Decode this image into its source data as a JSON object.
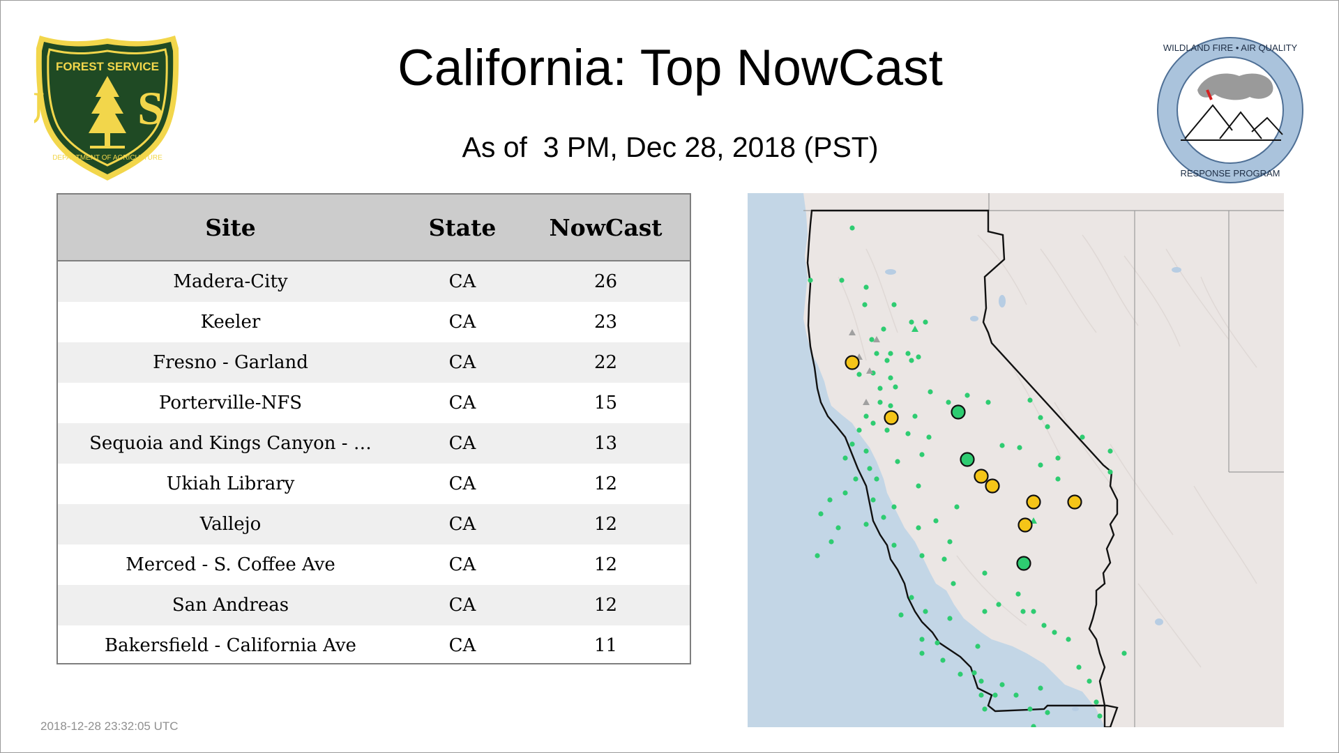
{
  "header": {
    "title": "California: Top NowCast",
    "subtitle": "As of  3 PM, Dec 28, 2018 (PST)"
  },
  "logos": {
    "usfs": {
      "top_text": "FOREST SERVICE",
      "letters": "U S",
      "bottom_text": "DEPARTMENT OF AGRICULTURE"
    },
    "wfaq": {
      "top_text": "WILDLAND FIRE • AIR QUALITY",
      "bottom_text": "RESPONSE PROGRAM"
    }
  },
  "table": {
    "headers": [
      "Site",
      "State",
      "NowCast"
    ],
    "rows": [
      {
        "site": "Madera-City",
        "state": "CA",
        "nowcast": "26"
      },
      {
        "site": "Keeler",
        "state": "CA",
        "nowcast": "23"
      },
      {
        "site": "Fresno - Garland",
        "state": "CA",
        "nowcast": "22"
      },
      {
        "site": "Porterville-NFS",
        "state": "CA",
        "nowcast": "15"
      },
      {
        "site": "Sequoia and Kings Canyon - …",
        "state": "CA",
        "nowcast": "13"
      },
      {
        "site": "Ukiah Library",
        "state": "CA",
        "nowcast": "12"
      },
      {
        "site": "Vallejo",
        "state": "CA",
        "nowcast": "12"
      },
      {
        "site": "Merced - S. Coffee Ave",
        "state": "CA",
        "nowcast": "12"
      },
      {
        "site": "San Andreas",
        "state": "CA",
        "nowcast": "12"
      },
      {
        "site": "Bakersfield - California Ave",
        "state": "CA",
        "nowcast": "11"
      }
    ]
  },
  "map": {
    "colors": {
      "ocean": "#c3d6e6",
      "land": "#ebe6e4",
      "good": "#2ecc71",
      "moderate": "#f5c518",
      "no_data": "#a0a0a0",
      "border": "#111111"
    },
    "large_marker_categories": [
      "moderate",
      "moderate",
      "good",
      "good",
      "moderate",
      "moderate",
      "moderate",
      "moderate",
      "moderate",
      "good"
    ]
  },
  "footer": {
    "timestamp": "2018-12-28 23:32:05 UTC"
  }
}
